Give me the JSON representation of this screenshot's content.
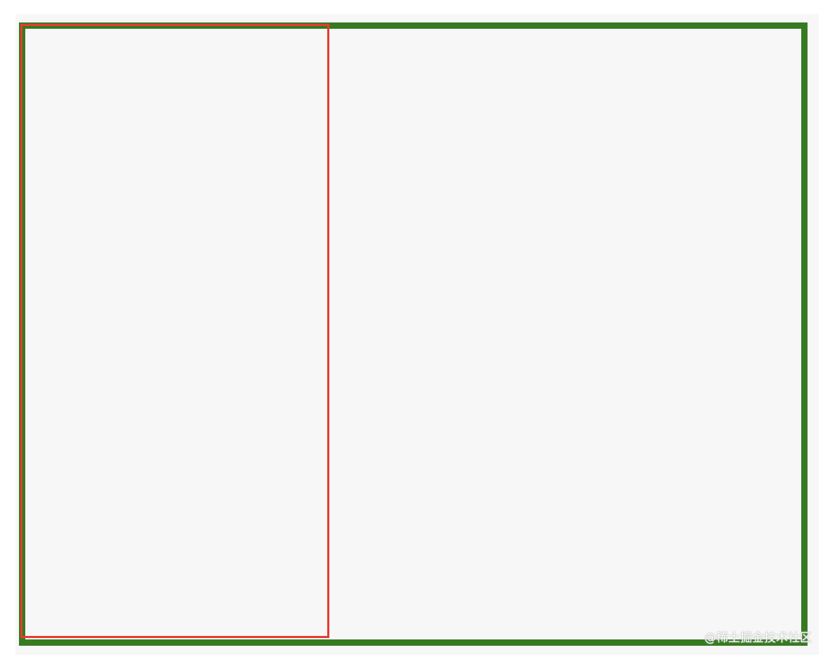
{
  "watermark": {
    "text": "@稀土掘金技术社区"
  },
  "colors": {
    "page_background": "#ffffff",
    "canvas_background": "#f7f7f7",
    "outer_border": "#367a21",
    "inner_border": "#e83a2e"
  }
}
